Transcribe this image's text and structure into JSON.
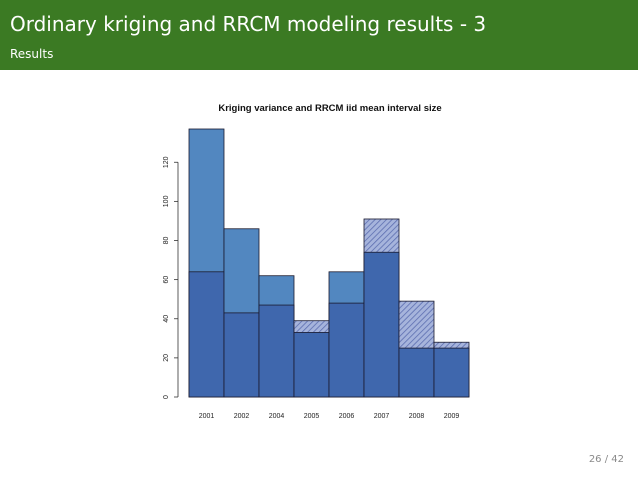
{
  "slide": {
    "title": "Ordinary kriging and RRCM modeling results - 3",
    "subtitle": "Results",
    "page_number": "26 / 42"
  },
  "colors": {
    "header_bg": "#3b7a23",
    "bar_light": "#5287c0",
    "bar_dark": "#3f67ad",
    "hatch_bg": "#a6b4dc",
    "hatch_line": "#5c6eb0",
    "bar_stroke": "#1a1a2e"
  },
  "chart_data": {
    "type": "bar",
    "title": "Kriging variance and RRCM iid mean interval size",
    "xlabel": "",
    "ylabel": "",
    "categories": [
      "2001",
      "2002",
      "2004",
      "2005",
      "2006",
      "2007",
      "2008",
      "2009"
    ],
    "series": [
      {
        "values": [
          64,
          43,
          47,
          33,
          48,
          74,
          25,
          25
        ]
      },
      {
        "values": [
          137,
          86,
          62,
          39,
          64,
          91,
          49,
          28
        ]
      }
    ],
    "ylim": [
      0,
      137
    ],
    "yticks": [
      0,
      20,
      40,
      60,
      80,
      100,
      120
    ],
    "grid": false,
    "legend": "none"
  }
}
